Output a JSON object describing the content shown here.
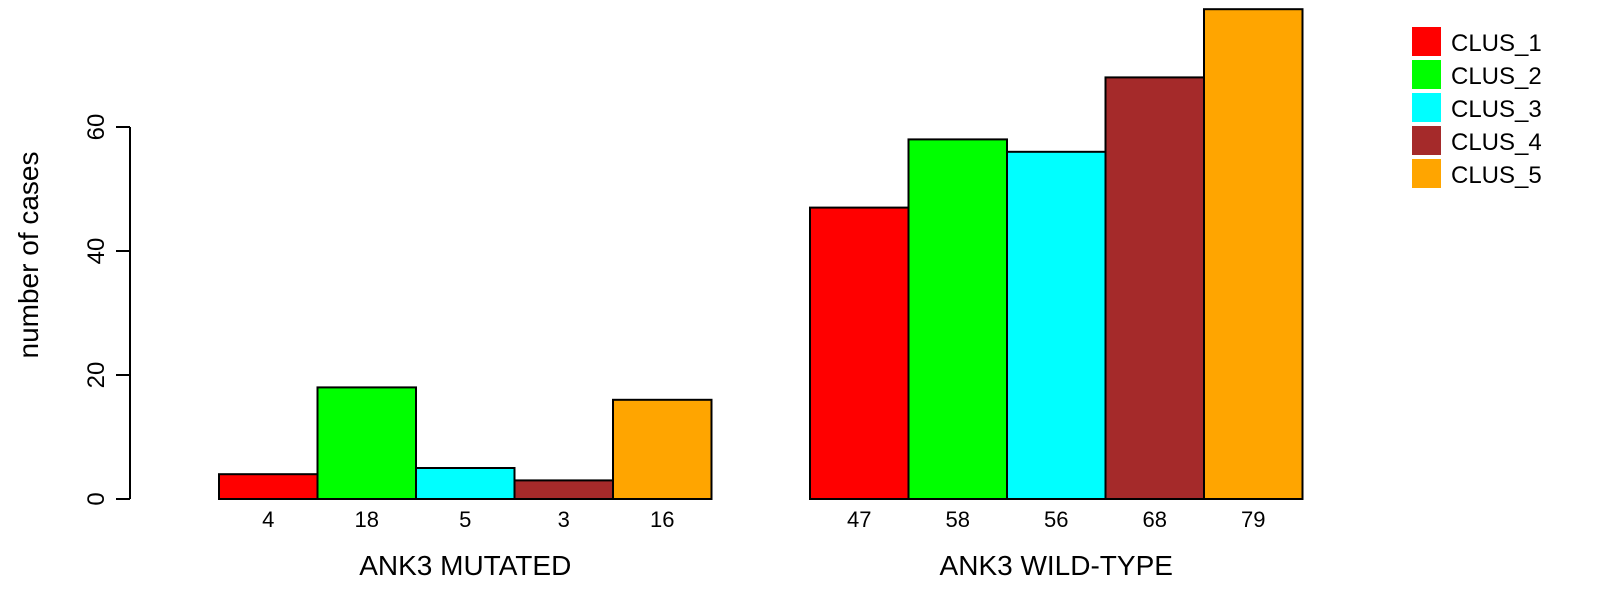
{
  "chart_data": {
    "type": "bar",
    "ylabel": "number of cases",
    "ylim": [
      0,
      80
    ],
    "yticks": [
      0,
      20,
      40,
      60
    ],
    "groups": [
      {
        "label": "ANK3 MUTATED",
        "values": [
          4,
          18,
          5,
          3,
          16
        ],
        "value_labels": [
          "4",
          "18",
          "5",
          "3",
          "16"
        ]
      },
      {
        "label": "ANK3 WILD-TYPE",
        "values": [
          47,
          58,
          56,
          68,
          79
        ],
        "value_labels": [
          "47",
          "58",
          "56",
          "68",
          "79"
        ]
      }
    ],
    "series": [
      {
        "name": "CLUS_1",
        "color": "#ff0000"
      },
      {
        "name": "CLUS_2",
        "color": "#00ff00"
      },
      {
        "name": "CLUS_3",
        "color": "#00ffff"
      },
      {
        "name": "CLUS_4",
        "color": "#a52a2a"
      },
      {
        "name": "CLUS_5",
        "color": "#ffa500"
      }
    ],
    "legend_position": "top-right",
    "grid": false
  }
}
